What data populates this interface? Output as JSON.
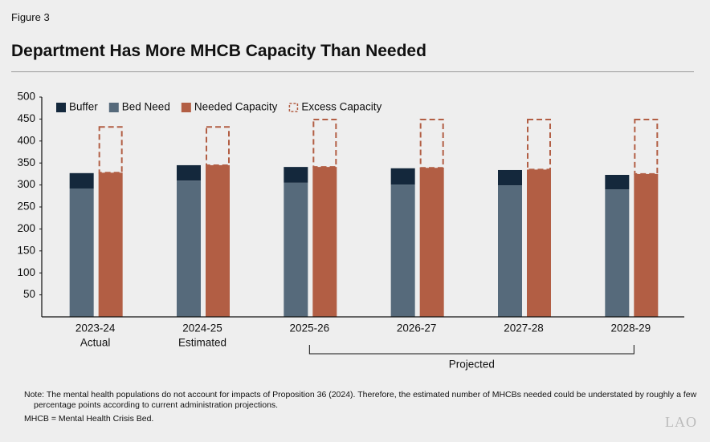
{
  "figure_label": "Figure 3",
  "chart_data": {
    "type": "bar",
    "title": "Department Has More MHCB Capacity Than Needed",
    "categories": [
      "2023-24",
      "2024-25",
      "2025-26",
      "2026-27",
      "2027-28",
      "2028-29"
    ],
    "sublabels": [
      "Actual",
      "Estimated",
      null,
      null,
      null,
      null
    ],
    "series": [
      {
        "name": "Buffer",
        "color": "#14283c",
        "stack_on": 1,
        "values": [
          35,
          35,
          36,
          37,
          35,
          33
        ]
      },
      {
        "name": "Bed Need",
        "color": "#566a7b",
        "slot": 0,
        "values": [
          292,
          310,
          305,
          301,
          299,
          290
        ]
      },
      {
        "name": "Needed Capacity",
        "color": "#b25e44",
        "slot": 1,
        "values": [
          328,
          345,
          341,
          339,
          335,
          325
        ]
      },
      {
        "name": "Excess Capacity",
        "color": "#b25e44",
        "stack_on": 2,
        "dashed": true,
        "values": [
          104,
          87,
          108,
          110,
          114,
          124
        ]
      }
    ],
    "ylim": [
      0,
      500
    ],
    "yticks": [
      50,
      100,
      150,
      200,
      250,
      300,
      350,
      400,
      450,
      500
    ],
    "bracket": {
      "label": "Projected",
      "from": 2,
      "to": 5
    }
  },
  "notes": [
    "Note: The mental health populations do not account for impacts of Proposition 36 (2024). Therefore, the estimated number of MHCBs needed could be understated by roughly a few percentage points according to current administration projections.",
    "MHCB = Mental Health Crisis Bed."
  ],
  "logo": "LAO"
}
